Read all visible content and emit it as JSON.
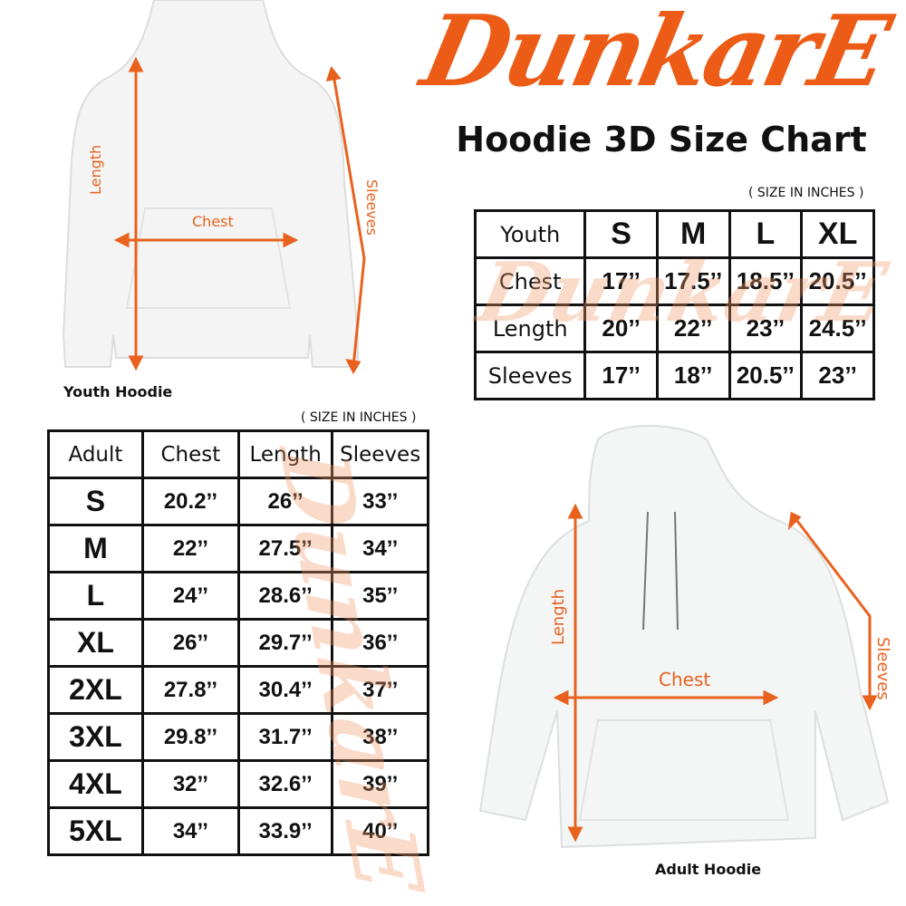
{
  "brand": {
    "logo_text": "DunkarE",
    "accent_color": "#ec5c16"
  },
  "title": "Hoodie 3D Size Chart",
  "youth": {
    "unit_note": "( SIZE IN INCHES )",
    "caption": "Youth Hoodie",
    "diagram_labels": {
      "length": "Length",
      "chest": "Chest",
      "sleeves": "Sleeves"
    },
    "headers": [
      "Youth",
      "S",
      "M",
      "L",
      "XL"
    ],
    "rows": [
      {
        "label": "Chest",
        "values": [
          "17’’",
          "17.5’’",
          "18.5’’",
          "20.5’’"
        ]
      },
      {
        "label": "Length",
        "values": [
          "20’’",
          "22’’",
          "23’’",
          "24.5’’"
        ]
      },
      {
        "label": "Sleeves",
        "values": [
          "17’’",
          "18’’",
          "20.5’’",
          "23’’"
        ]
      }
    ]
  },
  "adult": {
    "unit_note": "( SIZE IN INCHES )",
    "caption": "Adult Hoodie",
    "diagram_labels": {
      "length": "Length",
      "chest": "Chest",
      "sleeves": "Sleeves"
    },
    "headers": [
      "Adult",
      "Chest",
      "Length",
      "Sleeves"
    ],
    "rows": [
      {
        "size": "S",
        "values": [
          "20.2’’",
          "26’’",
          "33’’"
        ]
      },
      {
        "size": "M",
        "values": [
          "22’’",
          "27.5’’",
          "34’’"
        ]
      },
      {
        "size": "L",
        "values": [
          "24’’",
          "28.6’’",
          "35’’"
        ]
      },
      {
        "size": "XL",
        "values": [
          "26’’",
          "29.7’’",
          "36’’"
        ]
      },
      {
        "size": "2XL",
        "values": [
          "27.8’’",
          "30.4’’",
          "37’’"
        ]
      },
      {
        "size": "3XL",
        "values": [
          "29.8’’",
          "31.7’’",
          "38’’"
        ]
      },
      {
        "size": "4XL",
        "values": [
          "32’’",
          "32.6’’",
          "39’’"
        ]
      },
      {
        "size": "5XL",
        "values": [
          "34’’",
          "33.9’’",
          "40’’"
        ]
      }
    ]
  }
}
